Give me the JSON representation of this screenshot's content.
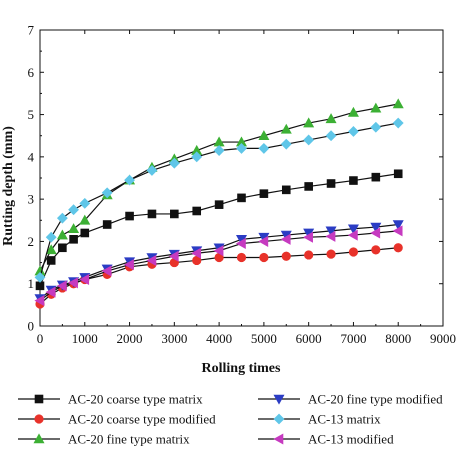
{
  "chart_data": {
    "type": "line",
    "xlabel": "Rolling times",
    "ylabel": "Rutting depth (mm)",
    "xlim": [
      0,
      9000
    ],
    "ylim": [
      0,
      7
    ],
    "xticks": [
      0,
      1000,
      2000,
      3000,
      4000,
      5000,
      6000,
      7000,
      8000,
      9000
    ],
    "yticks": [
      0,
      1,
      2,
      3,
      4,
      5,
      6,
      7
    ],
    "grid": false,
    "legend_position": "bottom",
    "x": [
      0,
      250,
      500,
      750,
      1000,
      1500,
      2000,
      2500,
      3000,
      3500,
      4000,
      4500,
      5000,
      5500,
      6000,
      6500,
      7000,
      7500,
      8000
    ],
    "series": [
      {
        "name": "AC-20 coarse type matrix",
        "marker": "square",
        "color": "#111111",
        "values": [
          0.95,
          1.55,
          1.85,
          2.05,
          2.2,
          2.4,
          2.6,
          2.65,
          2.65,
          2.72,
          2.87,
          3.03,
          3.13,
          3.22,
          3.3,
          3.37,
          3.44,
          3.52,
          3.6
        ]
      },
      {
        "name": "AC-20 coarse type modified",
        "marker": "circle",
        "color": "#e8322a",
        "values": [
          0.52,
          0.75,
          0.9,
          1.0,
          1.1,
          1.22,
          1.4,
          1.46,
          1.5,
          1.55,
          1.62,
          1.62,
          1.62,
          1.65,
          1.68,
          1.7,
          1.75,
          1.8,
          1.85
        ]
      },
      {
        "name": "AC-20 fine type matrix",
        "marker": "triangle-up",
        "color": "#3cb034",
        "values": [
          1.3,
          1.8,
          2.15,
          2.3,
          2.5,
          3.1,
          3.45,
          3.75,
          3.95,
          4.15,
          4.35,
          4.35,
          4.5,
          4.65,
          4.8,
          4.9,
          5.05,
          5.15,
          5.25
        ]
      },
      {
        "name": "AC-20 fine type modified",
        "marker": "triangle-down",
        "color": "#2b3cc4",
        "values": [
          0.65,
          0.85,
          0.97,
          1.05,
          1.15,
          1.35,
          1.52,
          1.62,
          1.7,
          1.78,
          1.85,
          2.05,
          2.1,
          2.15,
          2.2,
          2.25,
          2.3,
          2.34,
          2.4
        ]
      },
      {
        "name": "AC-13 matrix",
        "marker": "diamond",
        "color": "#5fc6e8",
        "values": [
          1.15,
          2.1,
          2.55,
          2.75,
          2.9,
          3.15,
          3.45,
          3.68,
          3.85,
          4.0,
          4.15,
          4.2,
          4.2,
          4.3,
          4.4,
          4.5,
          4.6,
          4.7,
          4.8
        ]
      },
      {
        "name": "AC-13 modified",
        "marker": "triangle-left",
        "color": "#c63ac0",
        "values": [
          0.6,
          0.8,
          0.95,
          1.02,
          1.1,
          1.3,
          1.45,
          1.55,
          1.65,
          1.72,
          1.78,
          1.95,
          2.0,
          2.05,
          2.1,
          2.12,
          2.15,
          2.2,
          2.25
        ]
      }
    ]
  }
}
